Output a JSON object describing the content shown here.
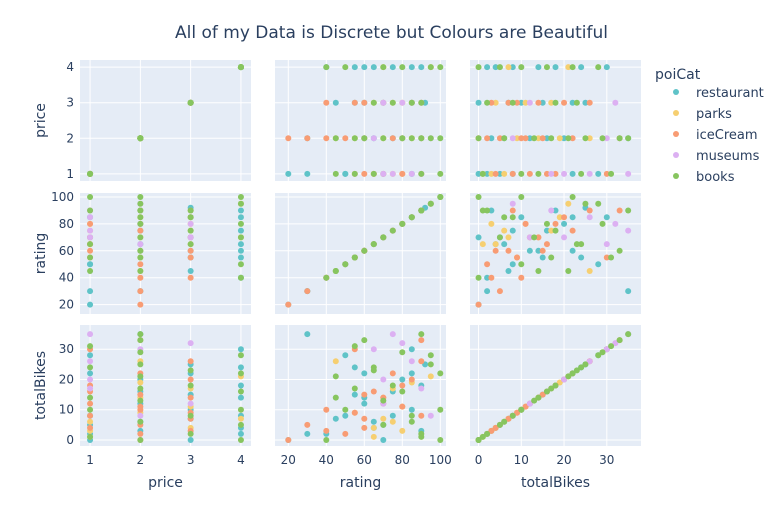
{
  "chart_data": {
    "type": "scatter",
    "title": "All of my Data is Discrete but Colours are Beautiful",
    "dimensions": [
      "price",
      "rating",
      "totalBikes"
    ],
    "legend": {
      "title": "poiCat",
      "placement": "right",
      "items": [
        {
          "name": "restaurant",
          "color": "#5FC3C8"
        },
        {
          "name": "parks",
          "color": "#F6CF71"
        },
        {
          "name": "iceCream",
          "color": "#F89C74"
        },
        {
          "name": "museums",
          "color": "#DCB0F2"
        },
        {
          "name": "books",
          "color": "#87C55F"
        }
      ]
    },
    "axes": {
      "price": {
        "range": [
          0.8,
          4.2
        ],
        "ticks": [
          1,
          2,
          3,
          4
        ]
      },
      "rating": {
        "range": [
          13,
          103
        ],
        "ticks_y": [
          20,
          40,
          60,
          80,
          100
        ],
        "ticks_x": [
          20,
          40,
          60,
          80,
          100
        ]
      },
      "totalBikes": {
        "range": [
          -2,
          38
        ],
        "ticks_y": [
          0,
          10,
          20,
          30
        ],
        "ticks_x": [
          0,
          10,
          20,
          30
        ]
      }
    },
    "grid": true,
    "series": [
      {
        "name": "restaurant",
        "points": [
          {
            "price": 1,
            "rating": 20,
            "totalBikes": 0
          },
          {
            "price": 1,
            "rating": 30,
            "totalBikes": 2
          },
          {
            "price": 1,
            "rating": 50,
            "totalBikes": 8
          },
          {
            "price": 1,
            "rating": 70,
            "totalBikes": 5
          },
          {
            "price": 2,
            "rating": 60,
            "totalBikes": 12
          },
          {
            "price": 2,
            "rating": 80,
            "totalBikes": 20
          },
          {
            "price": 2,
            "rating": 90,
            "totalBikes": 3
          },
          {
            "price": 2,
            "rating": 75,
            "totalBikes": 16
          },
          {
            "price": 3,
            "rating": 45,
            "totalBikes": 7
          },
          {
            "price": 3,
            "rating": 60,
            "totalBikes": 22
          },
          {
            "price": 3,
            "rating": 85,
            "totalBikes": 10
          },
          {
            "price": 3,
            "rating": 92,
            "totalBikes": 25
          },
          {
            "price": 3,
            "rating": 70,
            "totalBikes": 0
          },
          {
            "price": 4,
            "rating": 40,
            "totalBikes": 2
          },
          {
            "price": 4,
            "rating": 60,
            "totalBikes": 14
          },
          {
            "price": 4,
            "rating": 75,
            "totalBikes": 8
          },
          {
            "price": 4,
            "rating": 90,
            "totalBikes": 18
          },
          {
            "price": 4,
            "rating": 55,
            "totalBikes": 24
          },
          {
            "price": 4,
            "rating": 85,
            "totalBikes": 30
          },
          {
            "price": 2,
            "rating": 30,
            "totalBikes": 35
          },
          {
            "price": 1,
            "rating": 50,
            "totalBikes": 28
          },
          {
            "price": 1,
            "rating": 85,
            "totalBikes": 22
          },
          {
            "price": 2,
            "rating": 65,
            "totalBikes": 6
          },
          {
            "price": 3,
            "rating": 55,
            "totalBikes": 15
          },
          {
            "price": 4,
            "rating": 65,
            "totalBikes": 4
          }
        ]
      },
      {
        "name": "parks",
        "points": [
          {
            "price": 1,
            "rating": 65,
            "totalBikes": 1
          },
          {
            "price": 1,
            "rating": 75,
            "totalBikes": 6
          },
          {
            "price": 2,
            "rating": 55,
            "totalBikes": 9
          },
          {
            "price": 2,
            "rating": 70,
            "totalBikes": 14
          },
          {
            "price": 2,
            "rating": 85,
            "totalBikes": 19
          },
          {
            "price": 3,
            "rating": 65,
            "totalBikes": 4
          },
          {
            "price": 3,
            "rating": 80,
            "totalBikes": 11
          },
          {
            "price": 4,
            "rating": 70,
            "totalBikes": 7
          },
          {
            "price": 4,
            "rating": 95,
            "totalBikes": 21
          },
          {
            "price": 1,
            "rating": 80,
            "totalBikes": 3
          },
          {
            "price": 2,
            "rating": 45,
            "totalBikes": 26
          },
          {
            "price": 3,
            "rating": 75,
            "totalBikes": 17
          }
        ]
      },
      {
        "name": "iceCream",
        "points": [
          {
            "price": 1,
            "rating": 60,
            "totalBikes": 4
          },
          {
            "price": 1,
            "rating": 70,
            "totalBikes": 12
          },
          {
            "price": 1,
            "rating": 80,
            "totalBikes": 18
          },
          {
            "price": 2,
            "rating": 20,
            "totalBikes": 0
          },
          {
            "price": 2,
            "rating": 30,
            "totalBikes": 5
          },
          {
            "price": 2,
            "rating": 40,
            "totalBikes": 10
          },
          {
            "price": 2,
            "rating": 60,
            "totalBikes": 15
          },
          {
            "price": 2,
            "rating": 75,
            "totalBikes": 22
          },
          {
            "price": 3,
            "rating": 40,
            "totalBikes": 3
          },
          {
            "price": 3,
            "rating": 55,
            "totalBikes": 9
          },
          {
            "price": 3,
            "rating": 70,
            "totalBikes": 14
          },
          {
            "price": 3,
            "rating": 85,
            "totalBikes": 20
          },
          {
            "price": 3,
            "rating": 90,
            "totalBikes": 26
          },
          {
            "price": 1,
            "rating": 55,
            "totalBikes": 30
          },
          {
            "price": 2,
            "rating": 90,
            "totalBikes": 33
          },
          {
            "price": 1,
            "rating": 90,
            "totalBikes": 8
          },
          {
            "price": 2,
            "rating": 50,
            "totalBikes": 2
          },
          {
            "price": 3,
            "rating": 60,
            "totalBikes": 7
          },
          {
            "price": 1,
            "rating": 65,
            "totalBikes": 16
          },
          {
            "price": 2,
            "rating": 80,
            "totalBikes": 11
          }
        ]
      },
      {
        "name": "museums",
        "points": [
          {
            "price": 1,
            "rating": 75,
            "totalBikes": 35
          },
          {
            "price": 1,
            "rating": 85,
            "totalBikes": 26
          },
          {
            "price": 2,
            "rating": 65,
            "totalBikes": 30
          },
          {
            "price": 2,
            "rating": 95,
            "totalBikes": 8
          },
          {
            "price": 3,
            "rating": 70,
            "totalBikes": 12
          },
          {
            "price": 3,
            "rating": 80,
            "totalBikes": 32
          },
          {
            "price": 1,
            "rating": 70,
            "totalBikes": 20
          },
          {
            "price": 1,
            "rating": 90,
            "totalBikes": 17
          }
        ]
      },
      {
        "name": "books",
        "points": [
          {
            "price": 1,
            "rating": 90,
            "totalBikes": 1
          },
          {
            "price": 1,
            "rating": 100,
            "totalBikes": 10
          },
          {
            "price": 1,
            "rating": 65,
            "totalBikes": 24
          },
          {
            "price": 2,
            "rating": 100,
            "totalBikes": 0
          },
          {
            "price": 2,
            "rating": 85,
            "totalBikes": 6
          },
          {
            "price": 2,
            "rating": 70,
            "totalBikes": 13
          },
          {
            "price": 2,
            "rating": 55,
            "totalBikes": 17
          },
          {
            "price": 2,
            "rating": 45,
            "totalBikes": 21
          },
          {
            "price": 2,
            "rating": 95,
            "totalBikes": 25
          },
          {
            "price": 2,
            "rating": 80,
            "totalBikes": 29
          },
          {
            "price": 3,
            "rating": 90,
            "totalBikes": 2
          },
          {
            "price": 3,
            "rating": 75,
            "totalBikes": 18
          },
          {
            "price": 3,
            "rating": 65,
            "totalBikes": 23
          },
          {
            "price": 4,
            "rating": 40,
            "totalBikes": 0
          },
          {
            "price": 4,
            "rating": 50,
            "totalBikes": 10
          },
          {
            "price": 4,
            "rating": 80,
            "totalBikes": 16
          },
          {
            "price": 4,
            "rating": 100,
            "totalBikes": 22
          },
          {
            "price": 4,
            "rating": 95,
            "totalBikes": 28
          },
          {
            "price": 1,
            "rating": 45,
            "totalBikes": 14
          },
          {
            "price": 1,
            "rating": 55,
            "totalBikes": 31
          },
          {
            "price": 2,
            "rating": 60,
            "totalBikes": 33
          },
          {
            "price": 3,
            "rating": 85,
            "totalBikes": 8
          },
          {
            "price": 2,
            "rating": 90,
            "totalBikes": 35
          },
          {
            "price": 4,
            "rating": 70,
            "totalBikes": 5
          }
        ]
      }
    ]
  }
}
